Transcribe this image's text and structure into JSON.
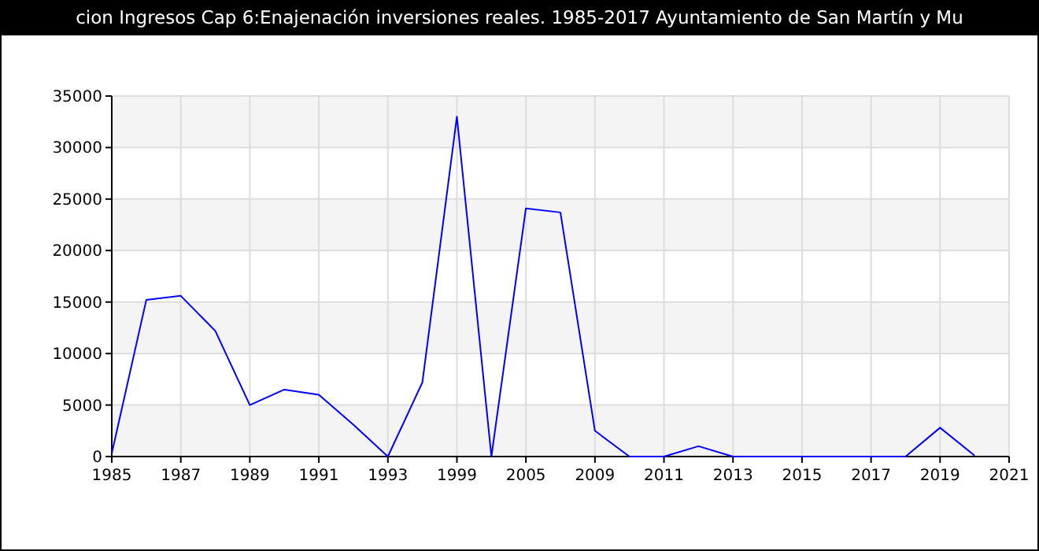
{
  "chart_data": {
    "type": "line",
    "title": "cion Ingresos Cap 6:Enajenación inversiones reales. 1985-2017 Ayuntamiento de San Martín y Mu",
    "categories": [
      "1985",
      null,
      "1987",
      null,
      "1989",
      null,
      "1991",
      null,
      "1993",
      null,
      "1999",
      null,
      "2005",
      null,
      "2009",
      null,
      "2011",
      null,
      "2013",
      null,
      "2015",
      null,
      "2017",
      null,
      "2019",
      null,
      "2021"
    ],
    "series": [
      {
        "color": "#0000ff",
        "values": [
          300,
          15200,
          15600,
          12200,
          5000,
          6500,
          6000,
          3100,
          0,
          7200,
          33000,
          0,
          24100,
          23700,
          2500,
          0,
          0,
          1000,
          0,
          0,
          0,
          0,
          0,
          0,
          2800,
          100,
          null
        ]
      }
    ],
    "ylim": [
      0,
      35000
    ],
    "yticks": [
      0,
      5000,
      10000,
      15000,
      20000,
      25000,
      30000,
      35000
    ],
    "grid": true,
    "marker": "none",
    "line_style": "solid"
  }
}
